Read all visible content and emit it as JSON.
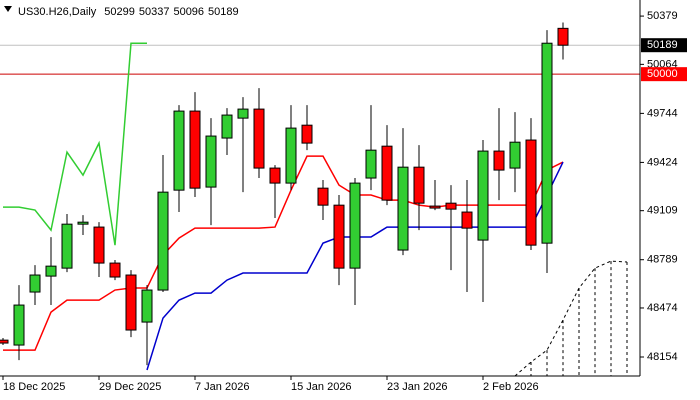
{
  "chart_data": {
    "type": "candlestick",
    "title": "US30.H26,Daily",
    "categories": [
      "18 Dec 2025",
      null,
      null,
      null,
      null,
      null,
      "29 Dec 2025",
      null,
      null,
      null,
      null,
      null,
      "7 Jan 2026",
      null,
      null,
      null,
      null,
      null,
      "15 Jan 2026",
      null,
      null,
      null,
      null,
      null,
      "23 Jan 2026",
      null,
      null,
      null,
      null,
      null,
      "2 Feb 2026",
      null,
      null,
      null,
      null,
      null,
      null,
      null,
      null,
      null
    ],
    "open": [
      48264,
      48232,
      48578,
      48682,
      48734,
      49021,
      49002,
      48767,
      48689,
      48382,
      48591,
      49243,
      49759,
      49263,
      49583,
      49713,
      49772,
      49387,
      49289,
      49667,
      49256,
      49145,
      48734,
      49322,
      49530,
      48852,
      49393,
      49139,
      49158,
      49100,
      48917,
      49498,
      49387,
      49570,
      48897,
      50299,
      null,
      null,
      null,
      null
    ],
    "high": [
      48278,
      48623,
      48754,
      48936,
      49087,
      49080,
      49034,
      48787,
      48721,
      48623,
      49472,
      49798,
      49883,
      49713,
      49778,
      49850,
      49909,
      49406,
      49798,
      49798,
      49309,
      49211,
      49322,
      49798,
      49667,
      49648,
      49537,
      49309,
      49276,
      49309,
      49570,
      49778,
      49752,
      49713,
      50287,
      50337,
      null,
      null,
      null,
      null
    ],
    "low": [
      48232,
      48134,
      48493,
      48493,
      48708,
      48950,
      48676,
      48656,
      48284,
      48101,
      48578,
      49100,
      49198,
      49015,
      49472,
      49230,
      49322,
      49061,
      49243,
      49504,
      49048,
      48623,
      48493,
      49243,
      49145,
      48819,
      48982,
      49113,
      48721,
      48578,
      48513,
      49178,
      49230,
      48852,
      48702,
      50096,
      null,
      null,
      null,
      null
    ],
    "close": [
      48245,
      48493,
      48689,
      48747,
      49021,
      49034,
      48767,
      48676,
      48330,
      48591,
      49230,
      49759,
      49256,
      49596,
      49733,
      49772,
      49387,
      49289,
      49648,
      49550,
      49145,
      48734,
      49289,
      49504,
      49178,
      49393,
      49158,
      49126,
      49119,
      48995,
      49498,
      49374,
      49556,
      48884,
      50202,
      50189,
      null,
      null,
      null,
      null
    ],
    "up_color": "#32cd32",
    "down_color": "#ff0000",
    "lines": [
      {
        "color": "#ff0000",
        "dashed": false,
        "values": [
          48199,
          48199,
          48199,
          48447,
          48525,
          48525,
          48525,
          48591,
          48604,
          48604,
          48819,
          48930,
          48995,
          48995,
          48995,
          48995,
          48995,
          49002,
          49243,
          49465,
          49465,
          49276,
          49211,
          49211,
          49178,
          49178,
          49145,
          49132,
          49145,
          49145,
          49145,
          49145,
          49145,
          49145,
          49374,
          49426,
          null,
          null,
          null,
          null
        ]
      },
      {
        "color": "#0000cd",
        "dashed": false,
        "values": [
          null,
          null,
          null,
          null,
          null,
          null,
          null,
          null,
          null,
          48069,
          48408,
          48525,
          48571,
          48571,
          48656,
          48702,
          48702,
          48702,
          48702,
          48702,
          48897,
          48937,
          48937,
          48937,
          49002,
          49002,
          49002,
          49002,
          49002,
          49002,
          49002,
          49002,
          49002,
          49002,
          49211,
          49426,
          null,
          null,
          null,
          null
        ]
      },
      {
        "color": "#32cd32",
        "dashed": false,
        "values": [
          49132,
          49132,
          49113,
          48982,
          49491,
          49341,
          49550,
          48884,
          50202,
          50202,
          null,
          null,
          null,
          null,
          null,
          null,
          null,
          null,
          null,
          null,
          null,
          null,
          null,
          null,
          null,
          null,
          null,
          null,
          null,
          null,
          null,
          null,
          null,
          null,
          null,
          null,
          null,
          null,
          null,
          null
        ]
      },
      {
        "color": "#000000",
        "dashed": true,
        "values": [
          null,
          null,
          null,
          null,
          null,
          null,
          null,
          null,
          null,
          null,
          null,
          null,
          null,
          null,
          null,
          null,
          null,
          null,
          null,
          null,
          null,
          null,
          null,
          null,
          null,
          null,
          null,
          null,
          null,
          null,
          null,
          null,
          48030,
          48121,
          48199,
          48395,
          48604,
          48734,
          48780,
          48774
        ]
      }
    ],
    "price_lines": [
      {
        "value": 50189,
        "color": "#c0c0c0",
        "tag_color": "#000000"
      },
      {
        "value": 50000,
        "color": "#cc0000",
        "tag_color": "#ff0000"
      }
    ],
    "ylim": [
      48030,
      50484
    ],
    "yticks": [
      50379,
      50064,
      49744,
      49424,
      49109,
      48789,
      48474,
      48154
    ]
  }
}
